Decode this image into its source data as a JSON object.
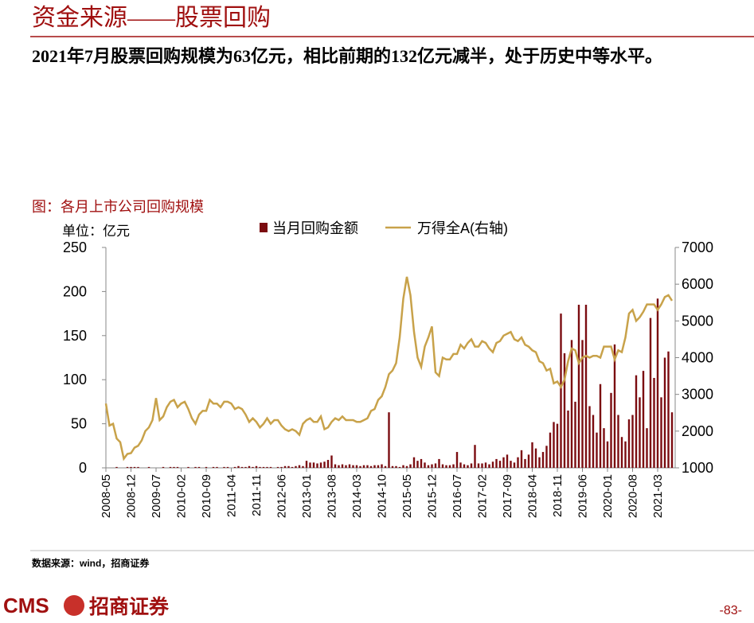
{
  "title": "资金来源——股票回购",
  "text": "2021年7月股票回购规模为63亿元，相比前期的132亿元减半，处于历史中等水平。",
  "source": "数据来源：wind，招商证券",
  "footer": {
    "logo": "CMS",
    "company": "招商证券",
    "page": "-83-"
  },
  "chart_data": {
    "type": "bar_line",
    "title": "图：各月上市公司回购规模",
    "y_label": "单位：亿元",
    "categories": [
      "2008-05",
      null,
      null,
      null,
      null,
      null,
      null,
      "2008-12",
      null,
      null,
      null,
      null,
      null,
      null,
      "2009-07",
      null,
      null,
      null,
      null,
      null,
      null,
      "2010-02",
      null,
      null,
      null,
      null,
      null,
      null,
      "2010-09",
      null,
      null,
      null,
      null,
      null,
      null,
      "2011-04",
      null,
      null,
      null,
      null,
      null,
      null,
      "2011-11",
      null,
      null,
      null,
      null,
      null,
      null,
      "2012-06",
      null,
      null,
      null,
      null,
      null,
      null,
      "2013-01",
      null,
      null,
      null,
      null,
      null,
      null,
      "2013-08",
      null,
      null,
      null,
      null,
      null,
      null,
      "2014-03",
      null,
      null,
      null,
      null,
      null,
      null,
      "2014-10",
      null,
      null,
      null,
      null,
      null,
      null,
      "2015-05",
      null,
      null,
      null,
      null,
      null,
      null,
      "2015-12",
      null,
      null,
      null,
      null,
      null,
      null,
      "2016-07",
      null,
      null,
      null,
      null,
      null,
      null,
      "2017-02",
      null,
      null,
      null,
      null,
      null,
      null,
      "2017-09",
      null,
      null,
      null,
      null,
      null,
      null,
      "2018-04",
      null,
      null,
      null,
      null,
      null,
      null,
      "2018-11",
      null,
      null,
      null,
      null,
      null,
      null,
      "2019-06",
      null,
      null,
      null,
      null,
      null,
      null,
      "2020-01",
      null,
      null,
      null,
      null,
      null,
      null,
      "2020-08",
      null,
      null,
      null,
      null,
      null,
      null,
      "2021-03",
      null,
      null,
      null,
      null
    ],
    "series": [
      {
        "name": "当月回购金额",
        "type": "bar",
        "color": "#7b0c10",
        "values": [
          0,
          0,
          0,
          1,
          0,
          0,
          1,
          1,
          1,
          1,
          0,
          0,
          1,
          0,
          0,
          0,
          1,
          0,
          1,
          1,
          1,
          0,
          0,
          1,
          0,
          1,
          1,
          0,
          1,
          0,
          1,
          1,
          0,
          1,
          1,
          0,
          1,
          2,
          1,
          1,
          2,
          1,
          2,
          1,
          1,
          1,
          1,
          0,
          1,
          1,
          2,
          2,
          1,
          2,
          3,
          2,
          8,
          6,
          6,
          5,
          6,
          7,
          9,
          14,
          4,
          3,
          4,
          3,
          4,
          3,
          3,
          2,
          3,
          3,
          2,
          3,
          3,
          4,
          2,
          63,
          2,
          2,
          1,
          3,
          2,
          4,
          12,
          8,
          10,
          6,
          3,
          4,
          5,
          10,
          4,
          3,
          3,
          4,
          18,
          6,
          4,
          3,
          5,
          26,
          5,
          5,
          6,
          4,
          7,
          10,
          8,
          12,
          15,
          8,
          6,
          12,
          20,
          10,
          15,
          29,
          22,
          12,
          18,
          25,
          40,
          52,
          50,
          175,
          130,
          65,
          145,
          75,
          185,
          145,
          185,
          70,
          60,
          40,
          95,
          45,
          30,
          85,
          140,
          60,
          35,
          30,
          55,
          60,
          105,
          80,
          110,
          45,
          170,
          102,
          192,
          80,
          125,
          132,
          63
        ]
      },
      {
        "name": "万得全A(右轴)",
        "type": "line",
        "axis": "y2",
        "color": "#c8a24a",
        "values": [
          2750,
          2150,
          2200,
          1800,
          1700,
          1250,
          1380,
          1400,
          1550,
          1600,
          1750,
          2000,
          2100,
          2300,
          2900,
          2300,
          2400,
          2650,
          2800,
          2850,
          2650,
          2750,
          2800,
          2600,
          2350,
          2200,
          2450,
          2550,
          2550,
          2850,
          2750,
          2750,
          2650,
          2800,
          2800,
          2750,
          2600,
          2650,
          2600,
          2450,
          2250,
          2350,
          2250,
          2100,
          2200,
          2350,
          2200,
          2300,
          2300,
          2150,
          2050,
          2000,
          2050,
          2000,
          1900,
          2200,
          2300,
          2350,
          2250,
          2250,
          2400,
          2050,
          2100,
          2250,
          2350,
          2300,
          2400,
          2300,
          2300,
          2300,
          2250,
          2250,
          2300,
          2350,
          2550,
          2600,
          2850,
          2950,
          3200,
          3550,
          3650,
          3850,
          4550,
          5600,
          6200,
          5700,
          4700,
          4000,
          3750,
          4300,
          4550,
          4850,
          3600,
          3500,
          4000,
          3950,
          3950,
          4100,
          4100,
          4350,
          4250,
          4400,
          4500,
          4300,
          4300,
          4450,
          4400,
          4250,
          4150,
          4400,
          4450,
          4600,
          4650,
          4700,
          4500,
          4450,
          4550,
          4350,
          4300,
          4200,
          4150,
          3900,
          3850,
          3650,
          3700,
          3300,
          3350,
          3200,
          3400,
          3900,
          4250,
          4200,
          3850,
          4000,
          4050,
          4000,
          4050,
          4050,
          4000,
          4300,
          4300,
          4300,
          3950,
          4200,
          4150,
          4550,
          5200,
          5300,
          5000,
          5100,
          5250,
          5450,
          5450,
          5450,
          5300,
          5450,
          5650,
          5700,
          5550
        ]
      }
    ],
    "ylim": [
      0,
      250
    ],
    "yticks": [
      0,
      50,
      100,
      150,
      200,
      250
    ],
    "y2lim": [
      1000,
      7000
    ],
    "y2ticks": [
      1000,
      2000,
      3000,
      4000,
      5000,
      6000,
      7000
    ],
    "legend": "top"
  }
}
